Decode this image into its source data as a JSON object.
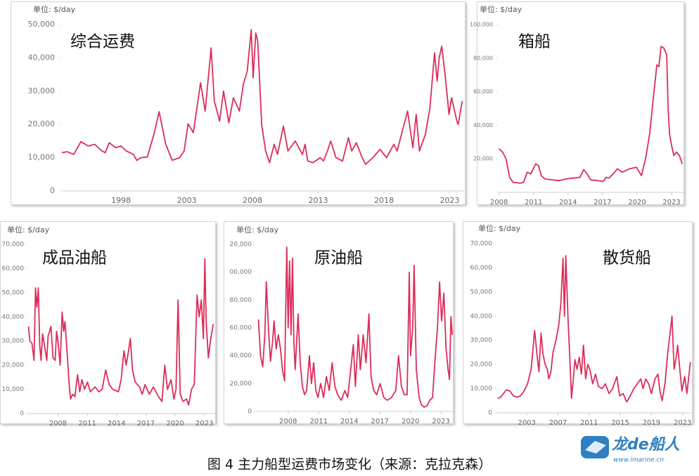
{
  "chart_data": [
    {
      "type": "line",
      "title": "综合运费",
      "unit_label": "单位: $/day",
      "color": "#dc2d5a",
      "x": [
        1993.5,
        1993.9,
        1994.4,
        1994.95,
        1995.5,
        1996.0,
        1996.55,
        1996.8,
        1997.1,
        1997.6,
        1998.0,
        1998.4,
        1998.95,
        1999.2,
        1999.5,
        2000.0,
        2000.5,
        2000.9,
        2001.4,
        2001.9,
        2002.45,
        2002.8,
        2003.1,
        2003.5,
        2004.05,
        2004.4,
        2004.85,
        2005.1,
        2005.5,
        2005.8,
        2006.2,
        2006.55,
        2007.0,
        2007.3,
        2007.6,
        2007.9,
        2008.05,
        2008.25,
        2008.4,
        2008.7,
        2009.0,
        2009.3,
        2009.65,
        2009.9,
        2010.35,
        2010.7,
        2011.25,
        2011.8,
        2012.0,
        2012.2,
        2012.6,
        2013.15,
        2013.4,
        2013.7,
        2013.95,
        2014.35,
        2014.85,
        2015.3,
        2015.55,
        2015.9,
        2016.35,
        2016.6,
        2017.15,
        2017.7,
        2018.2,
        2018.75,
        2019.0,
        2019.8,
        2020.2,
        2020.45,
        2020.7,
        2021.15,
        2021.5,
        2021.85,
        2022.05,
        2022.2,
        2022.4,
        2022.65,
        2022.95,
        2023.15,
        2023.55,
        2023.65,
        2023.95
      ],
      "values": [
        11500,
        11800,
        11000,
        14800,
        13500,
        14000,
        12000,
        11500,
        14500,
        13000,
        13500,
        12000,
        11000,
        9200,
        10000,
        10200,
        17000,
        23800,
        14000,
        9200,
        10000,
        12000,
        20200,
        17500,
        32500,
        24000,
        43000,
        27000,
        21000,
        30000,
        20500,
        28000,
        24000,
        32000,
        36000,
        48500,
        34000,
        47500,
        45000,
        20000,
        12000,
        8500,
        14000,
        11000,
        19500,
        12000,
        15000,
        11000,
        14000,
        9000,
        8500,
        10000,
        9000,
        12000,
        15000,
        10000,
        9000,
        16000,
        12000,
        14500,
        10000,
        8000,
        10000,
        12500,
        10000,
        14000,
        12000,
        24000,
        13000,
        23000,
        12000,
        17000,
        25000,
        41500,
        33000,
        40000,
        43500,
        35000,
        23000,
        28000,
        21000,
        20000,
        27000
      ],
      "xlim": [
        1993.5,
        2024.1
      ],
      "xticks": [
        1998,
        2003,
        2008,
        2013,
        2018,
        2023
      ],
      "ylim": [
        0,
        50000
      ],
      "yticks": [
        0,
        {
          "value": 10000,
          "label": "10,000"
        },
        {
          "value": 20000,
          "label": "20,000"
        },
        {
          "value": 30000,
          "label": "30,000"
        },
        {
          "value": 40000,
          "label": "40,000"
        },
        {
          "value": 50000,
          "label": "50,000"
        }
      ]
    },
    {
      "type": "line",
      "title": "箱船",
      "unit_label": "单位: $/day",
      "color": "#dc2d5a",
      "x": [
        2008.0,
        2008.31,
        2008.61,
        2008.92,
        2009.22,
        2009.84,
        2010.14,
        2010.45,
        2010.76,
        2011.18,
        2011.43,
        2011.67,
        2011.98,
        2012.59,
        2013.21,
        2013.82,
        2014.43,
        2015.04,
        2015.35,
        2015.66,
        2015.96,
        2016.57,
        2017.06,
        2017.31,
        2017.55,
        2017.92,
        2018.29,
        2018.72,
        2019.33,
        2019.94,
        2020.37,
        2020.74,
        2021.1,
        2021.47,
        2021.72,
        2021.9,
        2022.09,
        2022.33,
        2022.58,
        2022.7,
        2022.82,
        2023.0,
        2023.19,
        2023.43,
        2023.68,
        2023.92
      ],
      "values": [
        26000,
        24000,
        20000,
        9000,
        6000,
        5500,
        6000,
        12000,
        11000,
        17000,
        16000,
        10000,
        8000,
        7500,
        7000,
        8000,
        8500,
        9000,
        13500,
        11000,
        7500,
        7000,
        6500,
        9000,
        8500,
        11000,
        14000,
        12000,
        14000,
        15000,
        10000,
        20000,
        35000,
        60000,
        76000,
        75000,
        87000,
        86000,
        82000,
        50000,
        35000,
        28000,
        22000,
        24000,
        22000,
        17000
      ],
      "xlim": [
        2007.9,
        2024.1
      ],
      "xticks": [
        2008,
        2011,
        2014,
        2017,
        2020,
        2023
      ],
      "ylim": [
        0,
        100000
      ],
      "yticks": [
        {
          "value": 20000,
          "label": "20,000"
        },
        {
          "value": 40000,
          "label": "40,000"
        },
        {
          "value": 60000,
          "label": "60,000"
        },
        {
          "value": 80000,
          "label": "80,000"
        },
        {
          "value": 100000,
          "label": "100,000"
        }
      ]
    },
    {
      "type": "line",
      "title": "成品油船",
      "unit_label": "单位: $/day",
      "color": "#dc2d5a",
      "x": [
        2004.98,
        2005.12,
        2005.34,
        2005.55,
        2005.7,
        2005.84,
        2005.99,
        2006.13,
        2006.27,
        2006.42,
        2006.63,
        2006.85,
        2006.99,
        2007.14,
        2007.28,
        2007.5,
        2007.71,
        2007.86,
        2008.0,
        2008.22,
        2008.43,
        2008.58,
        2008.72,
        2008.94,
        2009.15,
        2009.29,
        2009.51,
        2009.73,
        2010.01,
        2010.23,
        2010.45,
        2010.73,
        2011.02,
        2011.31,
        2011.81,
        2012.17,
        2012.53,
        2012.89,
        2013.25,
        2013.61,
        2014.19,
        2014.47,
        2014.76,
        2014.98,
        2015.19,
        2015.41,
        2015.63,
        2015.91,
        2016.35,
        2016.63,
        2016.92,
        2017.35,
        2017.78,
        2018.29,
        2018.65,
        2018.94,
        2019.22,
        2019.58,
        2019.87,
        2020.09,
        2020.3,
        2020.52,
        2020.81,
        2021.17,
        2021.38,
        2021.67,
        2021.96,
        2022.24,
        2022.46,
        2022.68,
        2022.89,
        2023.04,
        2023.18,
        2023.4,
        2023.61,
        2023.9
      ],
      "values": [
        36000,
        30000,
        29000,
        22000,
        52000,
        44000,
        52000,
        28000,
        22000,
        33000,
        28000,
        22000,
        32000,
        34000,
        36000,
        23000,
        22000,
        34000,
        30000,
        20000,
        42000,
        34000,
        38000,
        25000,
        12000,
        6000,
        8000,
        7000,
        16000,
        9000,
        14000,
        10000,
        13000,
        9000,
        11000,
        9000,
        10000,
        18000,
        12000,
        10000,
        9000,
        14000,
        26000,
        20000,
        25000,
        31000,
        18000,
        13000,
        11000,
        8000,
        12000,
        8000,
        11000,
        7000,
        5000,
        20000,
        10000,
        14000,
        6000,
        10000,
        47000,
        8000,
        5000,
        6000,
        3500,
        10000,
        12000,
        49000,
        40000,
        47000,
        31000,
        64000,
        38000,
        23000,
        30000,
        37000
      ],
      "xlim": [
        2004.8,
        2024.1
      ],
      "xticks": [
        2008,
        2011,
        2014,
        2017,
        2020,
        2023
      ],
      "ylim": [
        0,
        70000
      ],
      "yticks": [
        0,
        {
          "value": 10000,
          "label": "10,000"
        },
        {
          "value": 20000,
          "label": "20,000"
        },
        {
          "value": 30000,
          "label": "30,000"
        },
        {
          "value": 40000,
          "label": "40,000"
        },
        {
          "value": 50000,
          "label": "50,000"
        },
        {
          "value": 60000,
          "label": "60,000"
        },
        {
          "value": 70000,
          "label": "70,000"
        }
      ]
    },
    {
      "type": "line",
      "title": "原油船",
      "unit_label": "单位: $/day",
      "color": "#dc2d5a",
      "x": [
        2005.08,
        2005.29,
        2005.5,
        2005.71,
        2005.85,
        2006.06,
        2006.26,
        2006.47,
        2006.61,
        2006.82,
        2007.03,
        2007.24,
        2007.44,
        2007.65,
        2007.86,
        2008.0,
        2008.14,
        2008.28,
        2008.42,
        2008.56,
        2008.69,
        2008.97,
        2009.18,
        2009.39,
        2009.6,
        2009.81,
        2010.08,
        2010.29,
        2010.5,
        2010.71,
        2010.92,
        2011.19,
        2011.47,
        2011.75,
        2012.03,
        2012.31,
        2012.58,
        2012.86,
        2013.21,
        2013.56,
        2013.83,
        2014.11,
        2014.39,
        2014.6,
        2014.88,
        2015.08,
        2015.36,
        2015.64,
        2015.92,
        2016.13,
        2016.4,
        2016.68,
        2017.03,
        2017.38,
        2017.72,
        2018.14,
        2018.56,
        2018.83,
        2019.11,
        2019.39,
        2019.67,
        2019.88,
        2020.01,
        2020.22,
        2020.36,
        2020.57,
        2020.85,
        2021.06,
        2021.33,
        2021.61,
        2021.89,
        2022.17,
        2022.44,
        2022.65,
        2022.86,
        2023.06,
        2023.28,
        2023.49,
        2023.69,
        2023.83,
        2023.97,
        2024.11
      ],
      "values": [
        66000,
        40000,
        32000,
        55000,
        93000,
        60000,
        36000,
        50000,
        65000,
        45000,
        55000,
        45000,
        30000,
        22000,
        118000,
        60000,
        108000,
        55000,
        110000,
        50000,
        30000,
        70000,
        35000,
        18000,
        12000,
        15000,
        40000,
        20000,
        35000,
        15000,
        10000,
        20000,
        10000,
        25000,
        15000,
        35000,
        18000,
        12000,
        8000,
        15000,
        10000,
        28000,
        48000,
        18000,
        55000,
        30000,
        55000,
        35000,
        70000,
        25000,
        15000,
        12000,
        20000,
        10000,
        8000,
        10000,
        15000,
        40000,
        18000,
        12000,
        12000,
        100000,
        40000,
        60000,
        105000,
        30000,
        10000,
        5000,
        3000,
        4000,
        8000,
        10000,
        40000,
        60000,
        93000,
        65000,
        85000,
        45000,
        30000,
        23000,
        68000,
        55000
      ],
      "xlim": [
        2004.7,
        2024.3
      ],
      "xticks": [
        2008,
        2011,
        2014,
        2017,
        2020,
        2023
      ],
      "ylim": [
        0,
        120000
      ],
      "yticks": [
        0,
        {
          "value": 20000,
          "label": "20,000"
        },
        {
          "value": 40000,
          "label": "40,000"
        },
        {
          "value": 60000,
          "label": "60,000"
        },
        {
          "value": 80000,
          "label": "80,000"
        },
        {
          "value": 100000,
          "label": "00,000"
        },
        {
          "value": 120000,
          "label": "20,000"
        }
      ]
    },
    {
      "type": "line",
      "title": "散货船",
      "unit_label": "单位: $/day",
      "color": "#dc2d5a",
      "x": [
        1999.27,
        1999.64,
        2000.0,
        2000.36,
        2000.82,
        2001.27,
        2001.73,
        2002.18,
        2002.64,
        2003.09,
        2003.55,
        2004.0,
        2004.27,
        2004.55,
        2004.82,
        2005.09,
        2005.36,
        2005.64,
        2005.82,
        2006.09,
        2006.36,
        2006.73,
        2007.09,
        2007.36,
        2007.64,
        2007.82,
        2008.0,
        2008.27,
        2008.55,
        2008.73,
        2009.0,
        2009.18,
        2009.45,
        2009.73,
        2010.0,
        2010.27,
        2010.55,
        2010.82,
        2011.09,
        2011.45,
        2011.82,
        2012.18,
        2012.64,
        2013.09,
        2013.55,
        2014.0,
        2014.55,
        2014.91,
        2015.36,
        2015.82,
        2016.27,
        2016.73,
        2017.18,
        2017.64,
        2017.91,
        2018.27,
        2018.64,
        2019.0,
        2019.45,
        2019.82,
        2020.09,
        2020.36,
        2020.73,
        2021.09,
        2021.36,
        2021.64,
        2021.91,
        2022.18,
        2022.36,
        2022.64,
        2022.91,
        2023.27,
        2023.55,
        2024.0
      ],
      "values": [
        6000,
        6500,
        8000,
        9500,
        9000,
        7000,
        6500,
        7000,
        9000,
        12000,
        18000,
        34000,
        25000,
        17000,
        33000,
        24000,
        20000,
        18000,
        14000,
        17000,
        25000,
        30000,
        36000,
        45000,
        64000,
        40000,
        65000,
        40000,
        20000,
        6000,
        15000,
        22000,
        18000,
        23000,
        16000,
        28000,
        14000,
        20000,
        18000,
        12000,
        16000,
        11000,
        10000,
        12000,
        8000,
        10000,
        15000,
        7000,
        8000,
        4500,
        7000,
        10000,
        12000,
        14000,
        10000,
        14000,
        12000,
        8000,
        14000,
        16000,
        9000,
        5000,
        12000,
        25000,
        32000,
        40000,
        18000,
        23000,
        28000,
        18000,
        9000,
        15000,
        8000,
        21000
      ],
      "xlim": [
        1999.1,
        2024.2
      ],
      "xticks": [
        2003,
        2007,
        2011,
        2015,
        2019,
        2023
      ],
      "ylim": [
        0,
        70000
      ],
      "yticks": [
        0,
        {
          "value": 10000,
          "label": "10,000"
        },
        {
          "value": 20000,
          "label": "20,000"
        },
        {
          "value": 30000,
          "label": "30,000"
        },
        {
          "value": 40000,
          "label": "40,000"
        },
        {
          "value": 50000,
          "label": "50,000"
        },
        {
          "value": 60000,
          "label": "60,000"
        },
        {
          "value": 70000,
          "label": "70,000"
        }
      ]
    }
  ],
  "caption": "图 4  主力船型运费市场变化（来源：克拉克森）",
  "watermark": {
    "brand": "龙de船人",
    "url": "www.imarine.cn"
  }
}
